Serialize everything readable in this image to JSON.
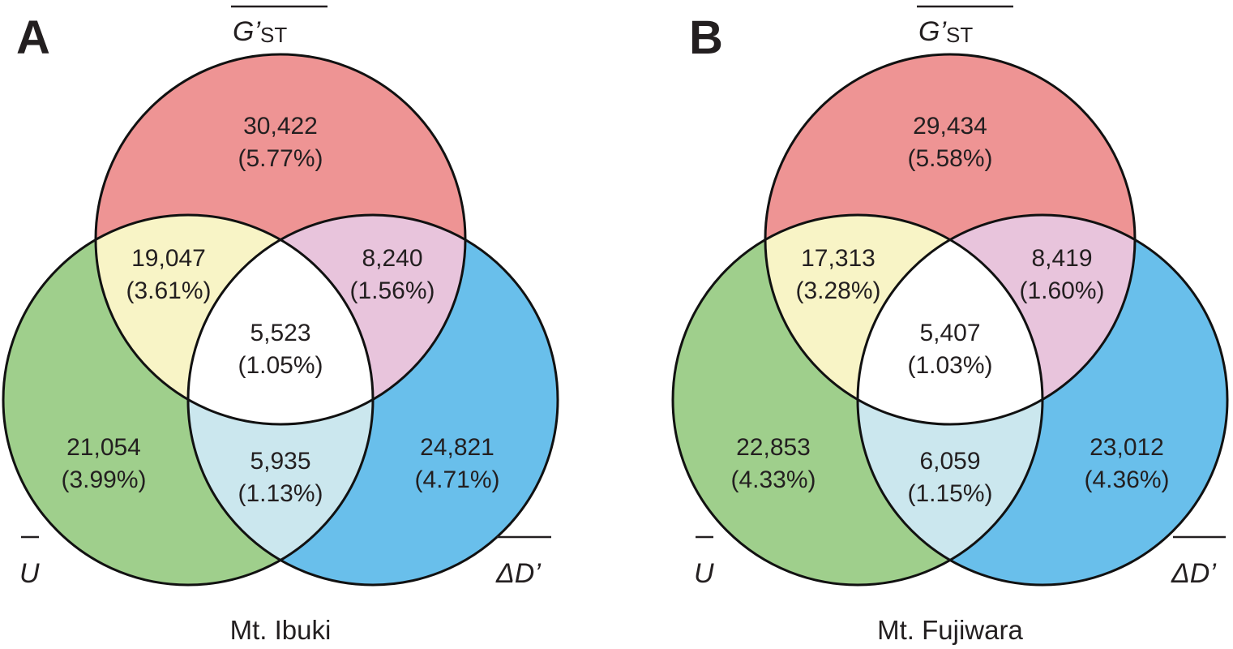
{
  "colors": {
    "g_only": "#ee9494",
    "u_only": "#9fcf8c",
    "d_only": "#69bfeb",
    "g_u": "#f8f4c6",
    "g_d": "#e8c4dc",
    "u_d": "#cbe7ee",
    "all": "#ffffff",
    "stroke": "#111111"
  },
  "set_labels": {
    "top": {
      "main": "G’",
      "sub": "ST"
    },
    "left": {
      "main": "U"
    },
    "right": {
      "main": "ΔD’"
    }
  },
  "panels": [
    {
      "letter": "A",
      "caption": "Mt. Ibuki",
      "regions": {
        "g_only": {
          "count": "30,422",
          "pct": "(5.77%)"
        },
        "g_u": {
          "count": "19,047",
          "pct": "(3.61%)"
        },
        "g_d": {
          "count": "8,240",
          "pct": "(1.56%)"
        },
        "all": {
          "count": "5,523",
          "pct": "(1.05%)"
        },
        "u_only": {
          "count": "21,054",
          "pct": "(3.99%)"
        },
        "u_d": {
          "count": "5,935",
          "pct": "(1.13%)"
        },
        "d_only": {
          "count": "24,821",
          "pct": "(4.71%)"
        }
      }
    },
    {
      "letter": "B",
      "caption": "Mt. Fujiwara",
      "regions": {
        "g_only": {
          "count": "29,434",
          "pct": "(5.58%)"
        },
        "g_u": {
          "count": "17,313",
          "pct": "(3.28%)"
        },
        "g_d": {
          "count": "8,419",
          "pct": "(1.60%)"
        },
        "all": {
          "count": "5,407",
          "pct": "(1.03%)"
        },
        "u_only": {
          "count": "22,853",
          "pct": "(4.33%)"
        },
        "u_d": {
          "count": "6,059",
          "pct": "(1.15%)"
        },
        "d_only": {
          "count": "23,012",
          "pct": "(4.36%)"
        }
      }
    }
  ]
}
